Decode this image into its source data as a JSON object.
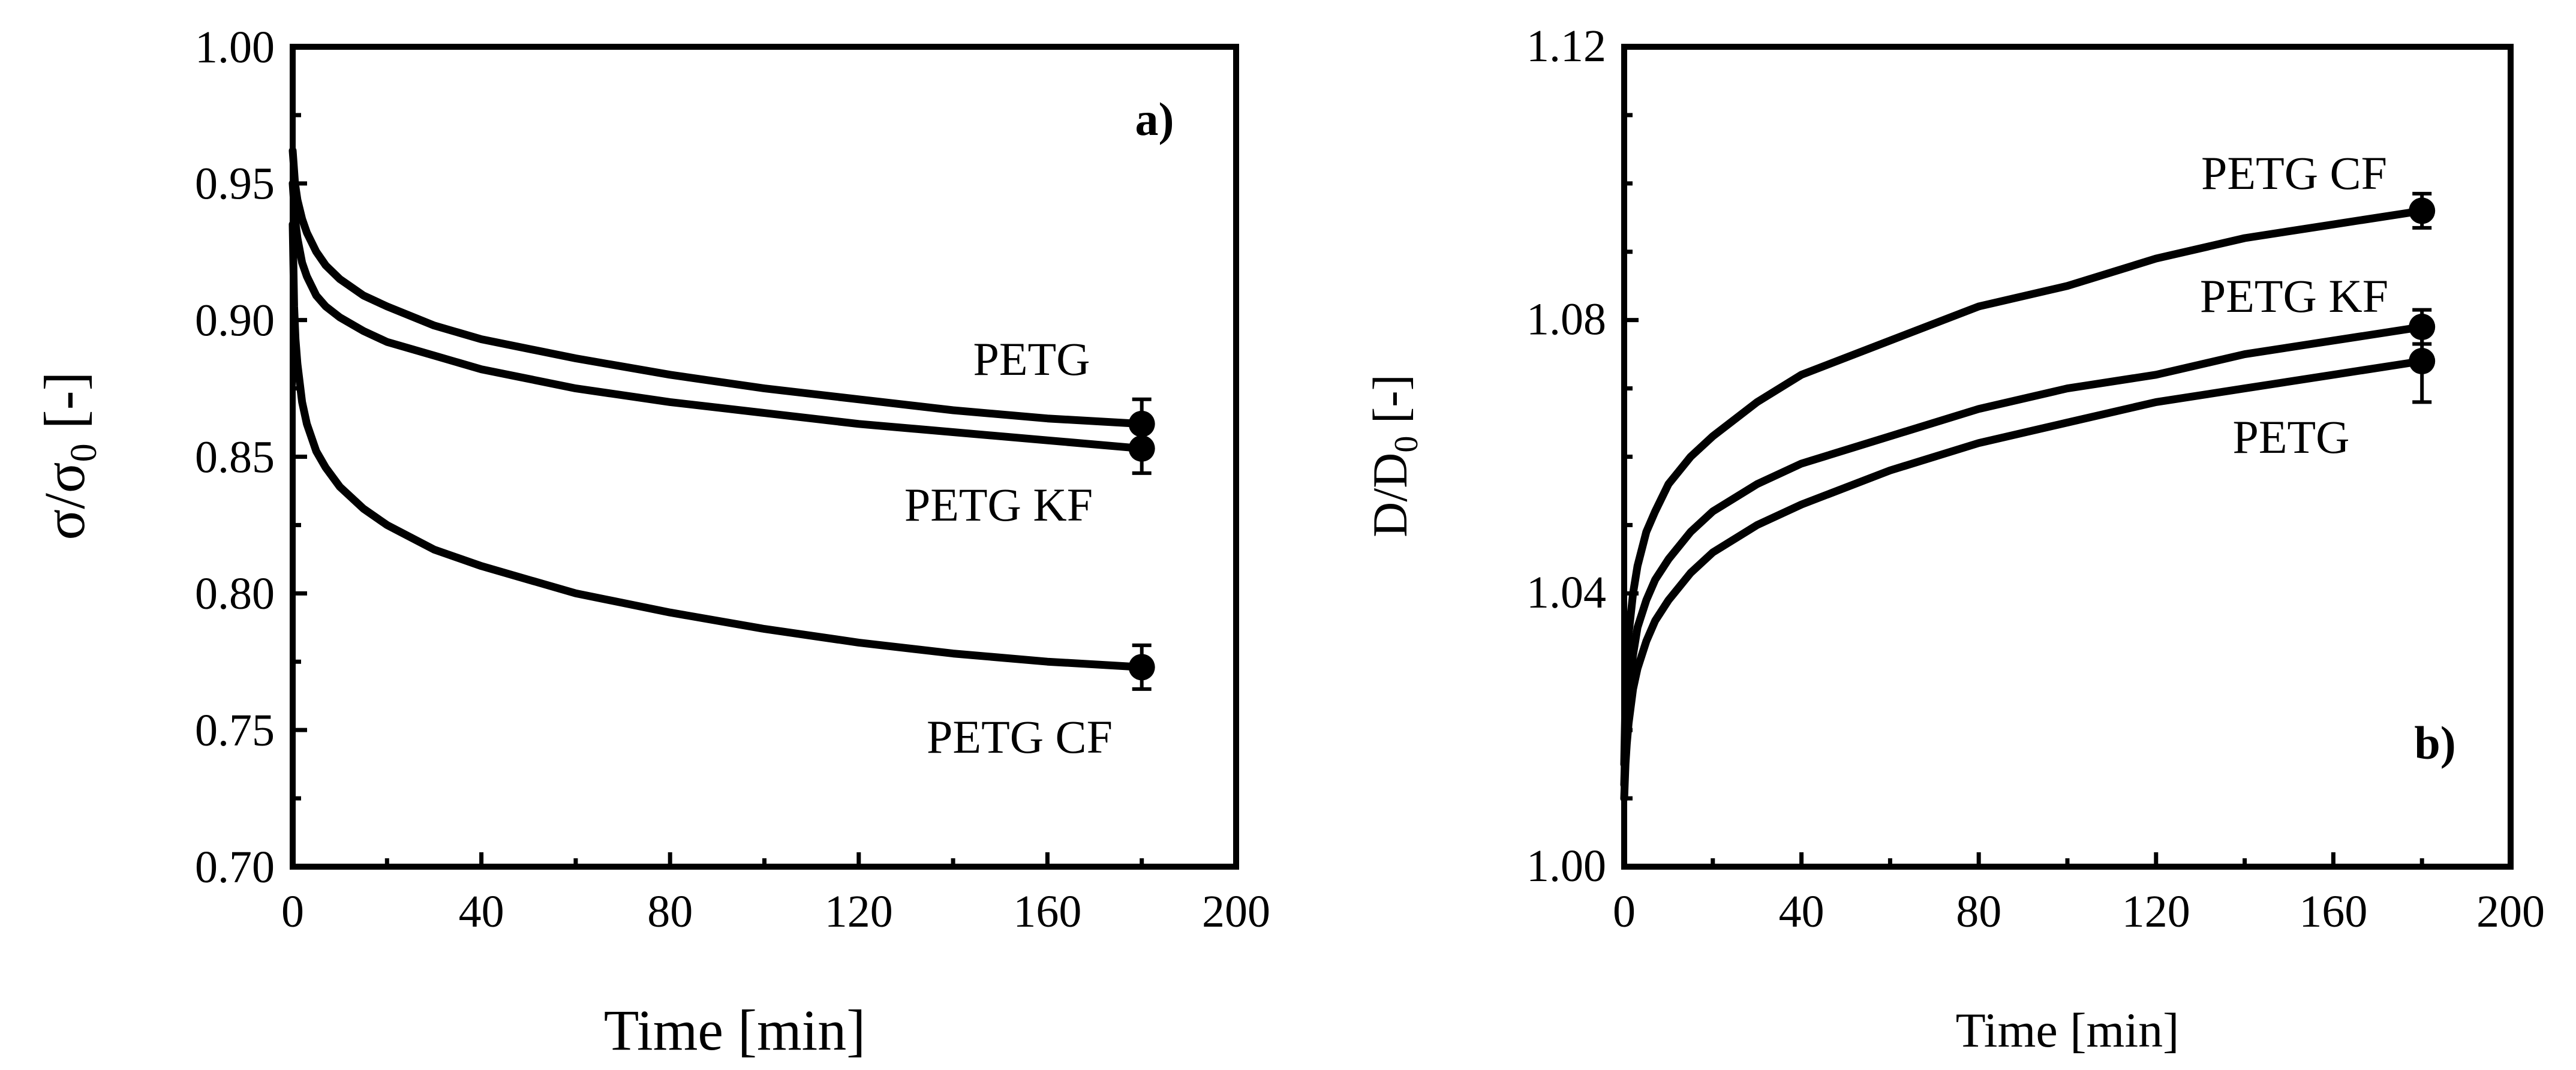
{
  "chart_data": [
    {
      "type": "line",
      "panel_label": "a)",
      "xlabel": "Time [min]",
      "ylabel": {
        "main": "σ/σ",
        "sub": "0",
        "suffix": " [-]"
      },
      "xlim": [
        0,
        200
      ],
      "ylim": [
        0.7,
        1.0
      ],
      "x_ticks": [
        0,
        40,
        80,
        120,
        160,
        200
      ],
      "y_ticks": [
        0.7,
        0.75,
        0.8,
        0.85,
        0.9,
        0.95,
        1.0
      ],
      "x_tick_labels": [
        "0",
        "40",
        "80",
        "120",
        "160",
        "200"
      ],
      "y_tick_labels": [
        "0.70",
        "0.75",
        "0.80",
        "0.85",
        "0.90",
        "0.95",
        "1.00"
      ],
      "x_minor_step": 20,
      "y_minor_step": 0.025,
      "grid": false,
      "series": [
        {
          "name": "PETG",
          "label": "PETG",
          "x": [
            0,
            0.5,
            1,
            2,
            3,
            5,
            7,
            10,
            15,
            20,
            30,
            40,
            60,
            80,
            100,
            120,
            140,
            160,
            180
          ],
          "y": [
            0.962,
            0.95,
            0.944,
            0.937,
            0.932,
            0.925,
            0.92,
            0.915,
            0.909,
            0.905,
            0.898,
            0.893,
            0.886,
            0.88,
            0.875,
            0.871,
            0.867,
            0.864,
            0.862
          ],
          "end_point": {
            "x": 180,
            "y": 0.862,
            "err": 0.009
          }
        },
        {
          "name": "PETG KF",
          "label": "PETG KF",
          "x": [
            0,
            0.5,
            1,
            2,
            3,
            5,
            7,
            10,
            15,
            20,
            30,
            40,
            60,
            80,
            100,
            120,
            140,
            160,
            180
          ],
          "y": [
            0.95,
            0.937,
            0.93,
            0.921,
            0.916,
            0.909,
            0.905,
            0.901,
            0.896,
            0.892,
            0.887,
            0.882,
            0.875,
            0.87,
            0.866,
            0.862,
            0.859,
            0.856,
            0.853
          ],
          "end_point": {
            "x": 180,
            "y": 0.853,
            "err": 0.009
          }
        },
        {
          "name": "PETG CF",
          "label": "PETG CF",
          "x": [
            0,
            0.3,
            0.6,
            1,
            2,
            3,
            5,
            7,
            10,
            15,
            20,
            30,
            40,
            60,
            80,
            100,
            120,
            140,
            160,
            180
          ],
          "y": [
            0.935,
            0.905,
            0.893,
            0.884,
            0.87,
            0.862,
            0.852,
            0.846,
            0.839,
            0.831,
            0.825,
            0.816,
            0.81,
            0.8,
            0.793,
            0.787,
            0.782,
            0.778,
            0.775,
            0.773
          ],
          "end_point": {
            "x": 180,
            "y": 0.773,
            "err": 0.008
          }
        }
      ]
    },
    {
      "type": "line",
      "panel_label": "b)",
      "xlabel": "Time [min]",
      "ylabel": {
        "main": "D/D",
        "sub": "0",
        "suffix": " [-]"
      },
      "xlim": [
        0,
        200
      ],
      "ylim": [
        1.0,
        1.12
      ],
      "x_ticks": [
        0,
        40,
        80,
        120,
        160,
        200
      ],
      "y_ticks": [
        1.0,
        1.04,
        1.08,
        1.12
      ],
      "x_tick_labels": [
        "0",
        "40",
        "80",
        "120",
        "160",
        "200"
      ],
      "y_tick_labels": [
        "1.00",
        "1.04",
        "1.08",
        "1.12"
      ],
      "x_minor_step": 20,
      "y_minor_step": 0.01,
      "grid": false,
      "series": [
        {
          "name": "PETG CF",
          "label": "PETG CF",
          "x": [
            0,
            0.3,
            0.6,
            1,
            2,
            3,
            5,
            7,
            10,
            15,
            20,
            30,
            40,
            60,
            80,
            100,
            120,
            140,
            160,
            180
          ],
          "y": [
            1.015,
            1.025,
            1.03,
            1.034,
            1.04,
            1.044,
            1.049,
            1.052,
            1.056,
            1.06,
            1.063,
            1.068,
            1.072,
            1.077,
            1.082,
            1.085,
            1.089,
            1.092,
            1.094,
            1.096
          ],
          "end_point": {
            "x": 180,
            "y": 1.096,
            "err": 0.0025
          }
        },
        {
          "name": "PETG KF",
          "label": "PETG KF",
          "x": [
            0,
            0.3,
            0.6,
            1,
            2,
            3,
            5,
            7,
            10,
            15,
            20,
            30,
            40,
            60,
            80,
            100,
            120,
            140,
            160,
            180
          ],
          "y": [
            1.012,
            1.019,
            1.023,
            1.026,
            1.031,
            1.035,
            1.039,
            1.042,
            1.045,
            1.049,
            1.052,
            1.056,
            1.059,
            1.063,
            1.067,
            1.07,
            1.072,
            1.075,
            1.077,
            1.079
          ],
          "end_point": {
            "x": 180,
            "y": 1.079,
            "err": 0.0025
          }
        },
        {
          "name": "PETG",
          "label": "PETG",
          "x": [
            0,
            0.3,
            0.6,
            1,
            2,
            3,
            5,
            7,
            10,
            15,
            20,
            30,
            40,
            60,
            80,
            100,
            120,
            140,
            160,
            180
          ],
          "y": [
            1.01,
            1.015,
            1.018,
            1.021,
            1.026,
            1.029,
            1.033,
            1.036,
            1.039,
            1.043,
            1.046,
            1.05,
            1.053,
            1.058,
            1.062,
            1.065,
            1.068,
            1.07,
            1.072,
            1.074
          ],
          "end_point": {
            "x": 180,
            "y": 1.074,
            "err": 0.006
          }
        }
      ]
    }
  ]
}
